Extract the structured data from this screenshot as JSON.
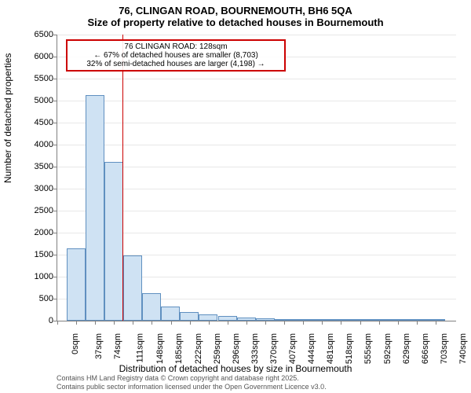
{
  "chart": {
    "type": "histogram",
    "title_main": "76, CLINGAN ROAD, BOURNEMOUTH, BH6 5QA",
    "title_sub": "Size of property relative to detached houses in Bournemouth",
    "title_fontsize": 13,
    "ylabel": "Number of detached properties",
    "xlabel": "Distribution of detached houses by size in Bournemouth",
    "label_fontsize": 12,
    "background_color": "#ffffff",
    "grid_color": "#e8e8e8",
    "axis_color": "#808080",
    "bar_fill": "#cfe2f3",
    "bar_stroke": "#6090c0",
    "ylim": [
      0,
      6500
    ],
    "ytick_step": 500,
    "xlim": [
      0,
      780
    ],
    "xtick_step": 37,
    "xtick_suffix": "sqm",
    "tick_fontsize": 11,
    "bins": [
      {
        "start": 18,
        "end": 55,
        "value": 1650
      },
      {
        "start": 55,
        "end": 92,
        "value": 5120
      },
      {
        "start": 92,
        "end": 129,
        "value": 3600
      },
      {
        "start": 129,
        "end": 166,
        "value": 1480
      },
      {
        "start": 166,
        "end": 203,
        "value": 620
      },
      {
        "start": 203,
        "end": 240,
        "value": 330
      },
      {
        "start": 240,
        "end": 277,
        "value": 200
      },
      {
        "start": 277,
        "end": 314,
        "value": 150
      },
      {
        "start": 314,
        "end": 351,
        "value": 100
      },
      {
        "start": 351,
        "end": 388,
        "value": 70
      },
      {
        "start": 388,
        "end": 425,
        "value": 50
      },
      {
        "start": 425,
        "end": 462,
        "value": 30
      },
      {
        "start": 462,
        "end": 499,
        "value": 20
      },
      {
        "start": 499,
        "end": 536,
        "value": 15
      },
      {
        "start": 536,
        "end": 573,
        "value": 10
      },
      {
        "start": 573,
        "end": 610,
        "value": 8
      },
      {
        "start": 610,
        "end": 647,
        "value": 6
      },
      {
        "start": 647,
        "end": 684,
        "value": 5
      },
      {
        "start": 684,
        "end": 721,
        "value": 4
      },
      {
        "start": 721,
        "end": 758,
        "value": 3
      }
    ],
    "reference": {
      "x": 128,
      "color": "#cc0000",
      "label_line1": "76 CLINGAN ROAD: 128sqm",
      "label_line2": "← 67% of detached houses are smaller (8,703)",
      "label_line3": "32% of semi-detached houses are larger (4,198) →",
      "box_border": "#cc0000"
    },
    "attribution_line1": "Contains HM Land Registry data © Crown copyright and database right 2025.",
    "attribution_line2": "Contains public sector information licensed under the Open Government Licence v3.0."
  }
}
